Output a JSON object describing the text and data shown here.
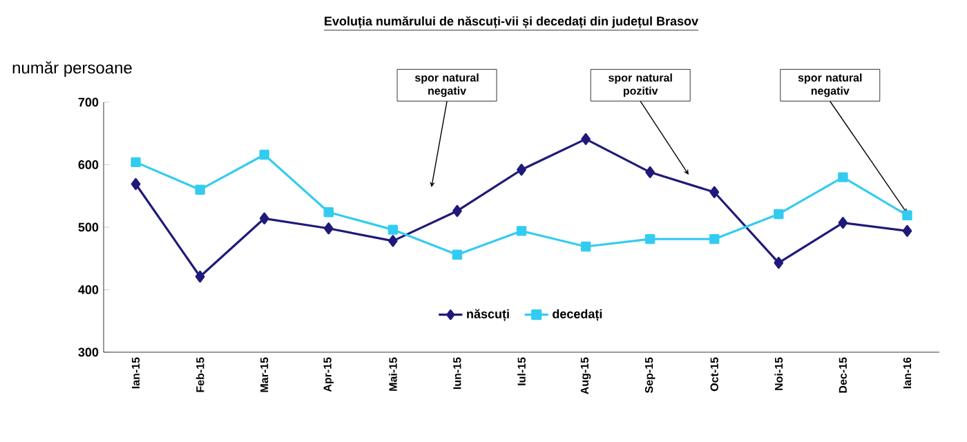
{
  "chart_data": {
    "type": "line",
    "title": "Evoluția numărului de născuți-vii și decedați din județul Brasov",
    "ylabel": "număr persoane",
    "categories": [
      "Ian-15",
      "Feb-15",
      "Mar-15",
      "Apr-15",
      "Mai-15",
      "Iun-15",
      "Iul-15",
      "Aug-15",
      "Sep-15",
      "Oct-15",
      "Noi-15",
      "Dec-15",
      "Ian-16"
    ],
    "series": [
      {
        "name": "născuți",
        "color": "#1f1a7a",
        "marker": "diamond",
        "values": [
          569,
          421,
          514,
          498,
          478,
          526,
          592,
          641,
          588,
          556,
          443,
          507,
          494
        ]
      },
      {
        "name": "decedați",
        "color": "#33ccf0",
        "marker": "square",
        "values": [
          604,
          560,
          616,
          524,
          496,
          456,
          494,
          469,
          481,
          481,
          521,
          580,
          519
        ]
      }
    ],
    "ylim": [
      300,
      700
    ],
    "yticks": [
      300,
      400,
      500,
      600,
      700
    ],
    "grid": false,
    "legend": "bottom",
    "line_style": "solid",
    "annotations": [
      "spor natural negativ",
      "spor natural pozitiv",
      {
        "text": "spor natural negativ",
        "x": "Ian-16",
        "y": 522
      }
    ]
  }
}
